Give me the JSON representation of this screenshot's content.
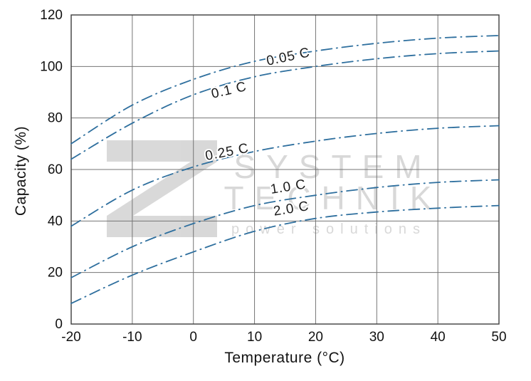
{
  "chart_data": {
    "type": "line",
    "title": "",
    "xlabel": "Temperature (°C)",
    "ylabel": "Capacity (%)",
    "xlim": [
      -20,
      50
    ],
    "ylim": [
      0,
      120
    ],
    "x_ticks": [
      "-20",
      "-10",
      "0",
      "10",
      "20",
      "30",
      "40",
      "50"
    ],
    "y_ticks": [
      "0",
      "20",
      "40",
      "60",
      "80",
      "100",
      "120"
    ],
    "grid": true,
    "legend_position": "inline-labels",
    "line_color": "#2e6f9e",
    "line_style": "dash-dot",
    "x": [
      -20,
      -10,
      0,
      10,
      20,
      30,
      40,
      50
    ],
    "series": [
      {
        "name": "0.05 C",
        "values": [
          70,
          85,
          95,
          102,
          106,
          109,
          111,
          112
        ],
        "label": {
          "x": 15.5,
          "y": 104,
          "angle": -12
        }
      },
      {
        "name": "0.1 C",
        "values": [
          64,
          78,
          89,
          96,
          100,
          103,
          105,
          106
        ],
        "label": {
          "x": 5.8,
          "y": 91,
          "angle": -13
        }
      },
      {
        "name": "0.25 C",
        "values": [
          38,
          52,
          61,
          67,
          71,
          74,
          76,
          77
        ],
        "label": {
          "x": 5.5,
          "y": 67,
          "angle": -11
        }
      },
      {
        "name": "1.0 C",
        "values": [
          18,
          30,
          39,
          46,
          50,
          53,
          55,
          56
        ],
        "label": {
          "x": 15.5,
          "y": 53.5,
          "angle": -9
        }
      },
      {
        "name": "2.0 C",
        "values": [
          8,
          19,
          28,
          36,
          41,
          43.5,
          45,
          46
        ],
        "label": {
          "x": 16,
          "y": 45,
          "angle": -9
        }
      }
    ]
  },
  "watermark": {
    "line1": "SYSTEM",
    "line2": "TECHNIK",
    "tagline": "power solutions",
    "color": "#9a9a9a"
  }
}
